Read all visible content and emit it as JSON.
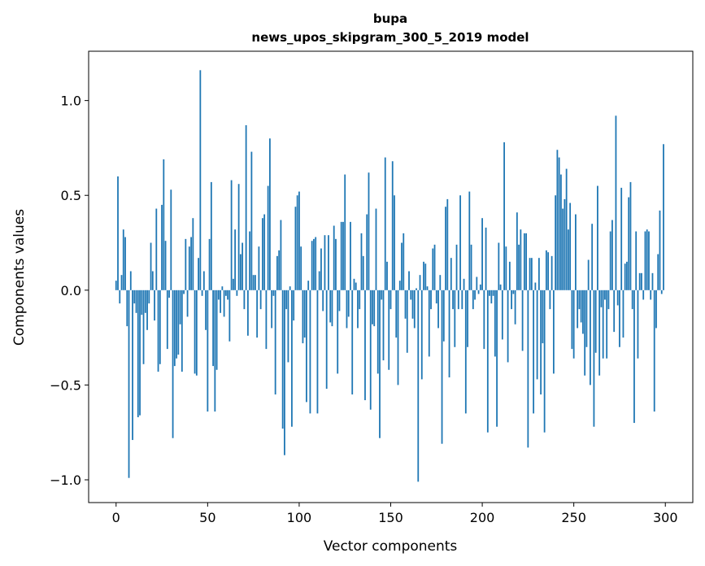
{
  "chart_data": {
    "type": "bar",
    "title": [
      "bupa",
      "news_upos_skipgram_300_5_2019 model"
    ],
    "xlabel": "Vector components",
    "ylabel": "Components values",
    "xlim": [
      -15,
      315
    ],
    "ylim": [
      -1.12,
      1.26
    ],
    "xticks": [
      0,
      50,
      100,
      150,
      200,
      250,
      300
    ],
    "yticks": [
      -1.0,
      -0.5,
      0.0,
      0.5,
      1.0
    ],
    "xtick_labels": [
      "0",
      "50",
      "100",
      "150",
      "200",
      "250",
      "300"
    ],
    "ytick_labels": [
      "−1.0",
      "−0.5",
      "0.0",
      "0.5",
      "1.0"
    ],
    "grid": false,
    "color": "#1f77b4",
    "values": [
      0.05,
      0.6,
      -0.07,
      0.08,
      0.32,
      0.28,
      -0.19,
      -0.99,
      0.1,
      -0.79,
      -0.07,
      -0.12,
      -0.67,
      -0.66,
      -0.13,
      -0.39,
      -0.12,
      -0.21,
      -0.07,
      0.25,
      0.1,
      -0.16,
      0.43,
      -0.43,
      -0.39,
      0.45,
      0.69,
      0.26,
      -0.31,
      -0.04,
      0.53,
      -0.78,
      -0.4,
      -0.36,
      -0.34,
      -0.18,
      -0.43,
      -0.02,
      0.27,
      -0.14,
      0.23,
      0.28,
      0.38,
      -0.44,
      -0.45,
      0.17,
      1.16,
      -0.03,
      0.1,
      -0.21,
      -0.64,
      0.27,
      0.57,
      -0.4,
      -0.64,
      -0.42,
      -0.05,
      -0.12,
      0.02,
      -0.14,
      -0.03,
      -0.05,
      -0.27,
      0.58,
      0.06,
      0.32,
      -0.03,
      0.56,
      0.19,
      0.25,
      -0.1,
      0.87,
      -0.24,
      0.31,
      0.73,
      0.08,
      0.08,
      -0.25,
      0.23,
      -0.1,
      0.38,
      0.4,
      -0.31,
      0.55,
      0.8,
      -0.2,
      -0.03,
      -0.55,
      0.18,
      0.21,
      0.37,
      -0.73,
      -0.87,
      -0.1,
      -0.38,
      0.02,
      -0.72,
      -0.16,
      0.44,
      0.5,
      0.52,
      0.23,
      -0.28,
      -0.25,
      -0.59,
      0.05,
      -0.65,
      0.26,
      0.27,
      0.28,
      -0.65,
      0.1,
      0.22,
      -0.11,
      0.29,
      -0.52,
      0.29,
      -0.17,
      -0.19,
      0.34,
      0.27,
      -0.44,
      -0.11,
      0.36,
      0.36,
      0.61,
      -0.2,
      -0.14,
      0.36,
      -0.55,
      0.06,
      0.04,
      -0.2,
      -0.1,
      0.3,
      0.18,
      -0.58,
      0.4,
      0.62,
      -0.63,
      -0.18,
      -0.19,
      0.43,
      -0.44,
      -0.78,
      -0.05,
      -0.37,
      0.7,
      0.15,
      -0.42,
      -0.1,
      0.68,
      0.5,
      -0.25,
      -0.5,
      0.05,
      0.25,
      0.3,
      -0.15,
      -0.33,
      0.1,
      -0.05,
      -0.15,
      -0.2,
      0.01,
      -1.01,
      0.08,
      -0.47,
      0.15,
      0.14,
      0.02,
      -0.35,
      -0.1,
      0.22,
      0.24,
      -0.07,
      -0.2,
      0.08,
      -0.81,
      -0.27,
      0.44,
      0.48,
      -0.46,
      0.17,
      -0.1,
      -0.3,
      0.24,
      -0.1,
      0.5,
      -0.1,
      0.06,
      -0.65,
      -0.3,
      0.52,
      0.24,
      -0.1,
      -0.05,
      0.07,
      -0.02,
      0.03,
      0.38,
      -0.31,
      0.33,
      -0.75,
      -0.03,
      -0.07,
      -0.03,
      -0.35,
      -0.72,
      0.25,
      0.03,
      -0.26,
      0.78,
      0.23,
      -0.38,
      0.15,
      -0.1,
      -0.02,
      -0.18,
      0.41,
      0.24,
      0.32,
      -0.32,
      0.3,
      0.3,
      -0.83,
      0.17,
      0.17,
      -0.65,
      0.04,
      -0.47,
      0.17,
      -0.55,
      -0.28,
      -0.75,
      0.21,
      0.2,
      -0.1,
      0.18,
      -0.44,
      0.5,
      0.74,
      0.7,
      0.61,
      0.43,
      0.48,
      0.64,
      0.32,
      0.46,
      -0.31,
      -0.36,
      0.4,
      -0.2,
      -0.1,
      -0.17,
      -0.23,
      -0.45,
      -0.3,
      0.16,
      -0.5,
      0.35,
      -0.72,
      -0.33,
      0.55,
      -0.45,
      -0.09,
      -0.36,
      -0.05,
      -0.36,
      -0.1,
      0.31,
      0.37,
      -0.22,
      0.92,
      -0.08,
      -0.3,
      0.54,
      -0.25,
      0.14,
      0.15,
      0.49,
      0.57,
      -0.1,
      -0.7,
      0.31,
      -0.36,
      0.09,
      0.09,
      -0.05,
      0.31,
      0.32,
      0.31,
      -0.05,
      0.09,
      -0.64,
      -0.2,
      0.19,
      0.42,
      -0.02,
      0.77
    ]
  }
}
